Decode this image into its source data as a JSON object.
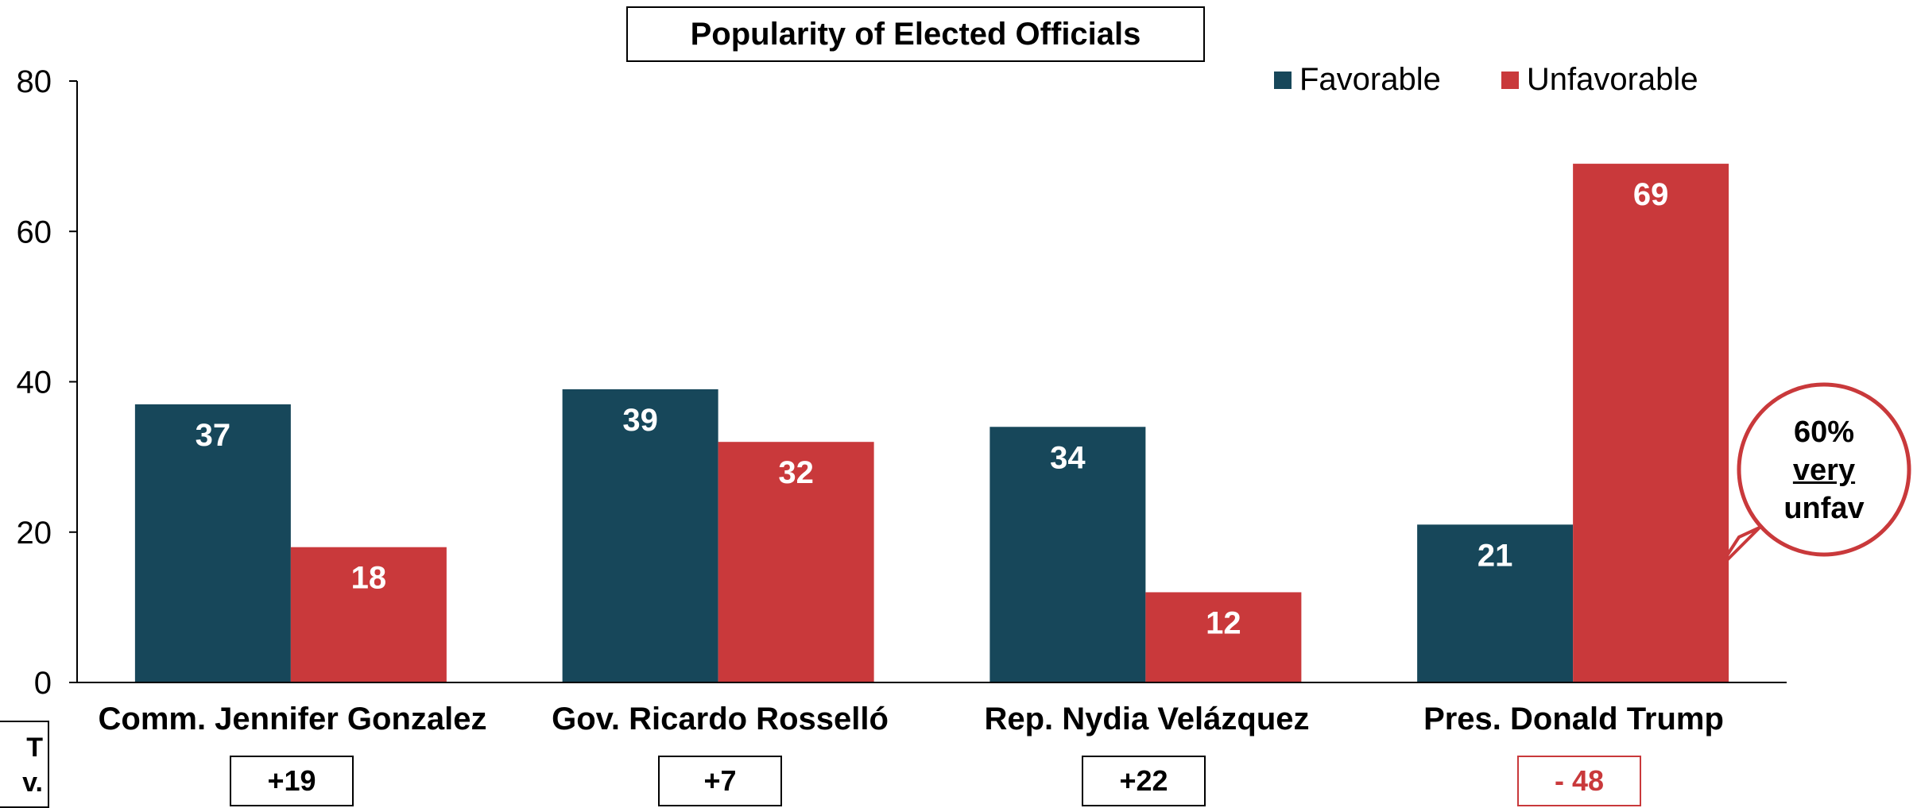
{
  "chart_data": {
    "type": "bar",
    "title": "Popularity of Elected Officials",
    "categories": [
      "Comm. Jennifer Gonzalez",
      "Gov. Ricardo Rosselló",
      "Rep. Nydia Velázquez",
      "Pres. Donald Trump"
    ],
    "series": [
      {
        "name": "Favorable",
        "values": [
          37,
          39,
          34,
          21
        ],
        "color": "#17475a"
      },
      {
        "name": "Unfavorable",
        "values": [
          18,
          32,
          12,
          69
        ],
        "color": "#c9393b"
      }
    ],
    "ylim": [
      0,
      80
    ],
    "yticks": [
      0,
      20,
      40,
      60,
      80
    ],
    "net": [
      "+19",
      "+7",
      "+22",
      "- 48"
    ],
    "legend_position": "top-right",
    "grid": false
  },
  "net_side_label": [
    "T",
    "v."
  ],
  "callout": {
    "line1": "60%",
    "line2": "very",
    "line3": "unfav"
  },
  "colors": {
    "favorable": "#17475a",
    "unfavorable": "#c9393b",
    "axis": "#000000"
  }
}
